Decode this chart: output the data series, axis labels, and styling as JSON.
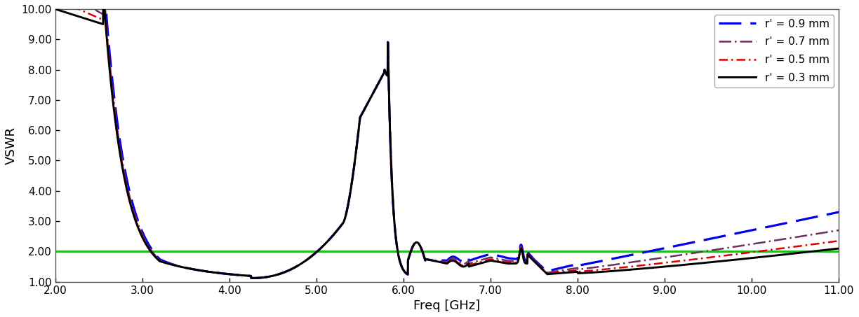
{
  "xlabel": "Freq [GHz]",
  "ylabel": "VSWR",
  "xlim": [
    2.0,
    11.0
  ],
  "ylim": [
    1.0,
    10.0
  ],
  "xticks": [
    2.0,
    3.0,
    4.0,
    5.0,
    6.0,
    7.0,
    8.0,
    9.0,
    10.0,
    11.0
  ],
  "yticks": [
    1.0,
    2.0,
    3.0,
    4.0,
    5.0,
    6.0,
    7.0,
    8.0,
    9.0,
    10.0
  ],
  "green_line_y": 2.0,
  "green_line_color": "#22bb22",
  "background_color": "#ffffff",
  "series": [
    {
      "label": "r' = 0.9 mm",
      "color": "#0000ee",
      "lw": 2.3,
      "dashes": [
        10,
        4
      ],
      "shift_low": 0.18,
      "shift_high_start": 7.5,
      "shift_high_max": 1.2
    },
    {
      "label": "r' = 0.7 mm",
      "color": "#6b3060",
      "lw": 1.8,
      "dashes": [
        7,
        2,
        1,
        2
      ],
      "shift_low": 0.09,
      "shift_high_start": 7.5,
      "shift_high_max": 0.6
    },
    {
      "label": "r' = 0.5 mm",
      "color": "#dd0000",
      "lw": 1.8,
      "dashes": [
        5,
        2,
        1,
        2
      ],
      "shift_low": 0.04,
      "shift_high_start": 7.5,
      "shift_high_max": 0.25
    },
    {
      "label": "r' = 0.3 mm",
      "color": "#000000",
      "lw": 2.1,
      "dashes": [],
      "shift_low": 0.0,
      "shift_high_start": 7.5,
      "shift_high_max": 0.0
    }
  ]
}
